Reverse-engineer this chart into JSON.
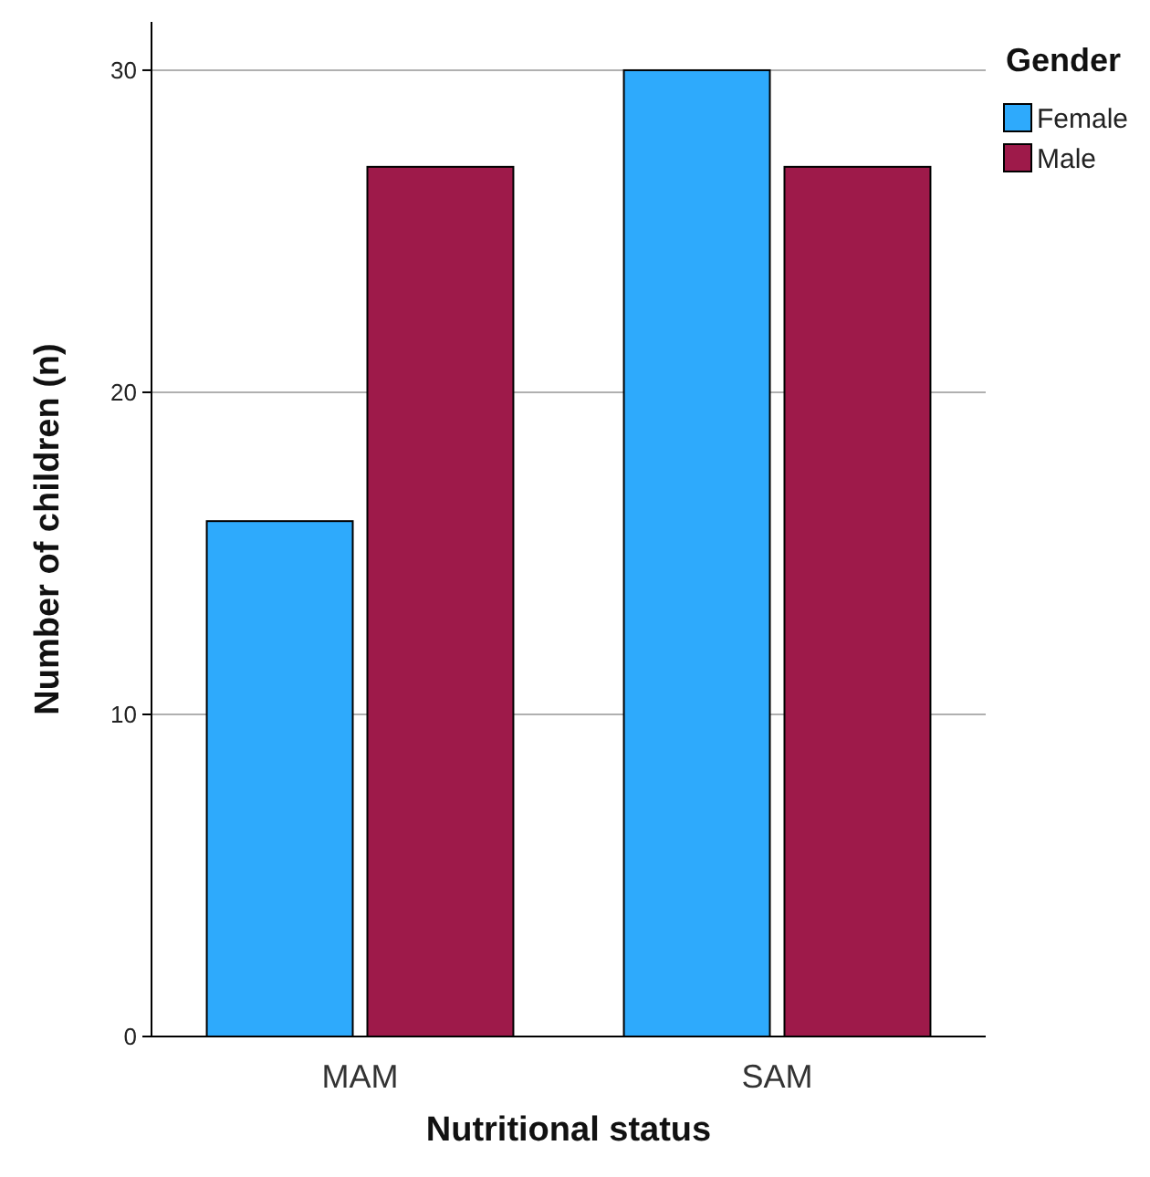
{
  "chart_data": {
    "type": "bar",
    "xlabel": "Nutritional status",
    "ylabel": "Number of children (n)",
    "legend_title": "Gender",
    "categories": [
      "MAM",
      "SAM"
    ],
    "series": [
      {
        "name": "Female",
        "color": "#2eaafc",
        "values": [
          16,
          30
        ]
      },
      {
        "name": "Male",
        "color": "#9e1a4a",
        "values": [
          27,
          27
        ]
      }
    ],
    "ylim": [
      0,
      31.5
    ],
    "yticks": [
      0,
      10,
      20,
      30
    ],
    "grid": "y",
    "legend": "top right"
  }
}
